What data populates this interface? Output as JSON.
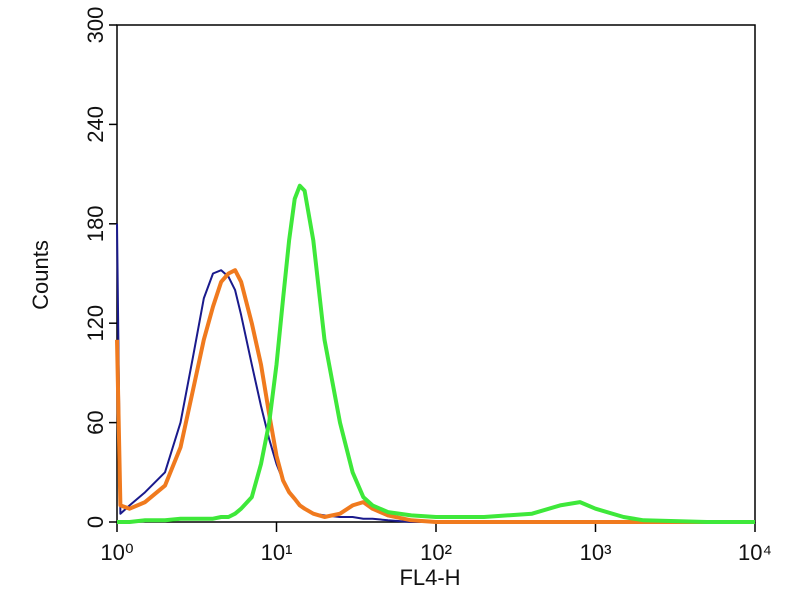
{
  "chart_data": {
    "type": "line",
    "xlabel": "FL4-H",
    "ylabel": "Counts",
    "xscale": "log",
    "xlim": [
      1,
      10000
    ],
    "xticks": [
      {
        "value": 1,
        "label": "10⁰"
      },
      {
        "value": 10,
        "label": "10¹"
      },
      {
        "value": 100,
        "label": "10²"
      },
      {
        "value": 1000,
        "label": "10³"
      },
      {
        "value": 10000,
        "label": "10⁴"
      }
    ],
    "ylim": [
      0,
      300
    ],
    "yticks": [
      0,
      60,
      120,
      180,
      240,
      300
    ],
    "x": [
      1,
      1.05,
      1.2,
      1.5,
      2,
      2.5,
      3,
      3.5,
      4,
      4.5,
      5,
      5.5,
      6,
      7,
      8,
      9,
      10,
      11,
      12,
      13,
      14,
      15,
      17,
      20,
      25,
      30,
      35,
      40,
      50,
      70,
      100,
      200,
      400,
      600,
      800,
      1000,
      1500,
      2000,
      5000,
      10000
    ],
    "series": [
      {
        "color": "#1a1a8c",
        "values": [
          180,
          5,
          10,
          18,
          30,
          60,
          100,
          135,
          150,
          152,
          148,
          140,
          125,
          95,
          70,
          50,
          35,
          25,
          18,
          14,
          10,
          8,
          5,
          4,
          3,
          3,
          2,
          2,
          1,
          0,
          0,
          0,
          0,
          0,
          0,
          0,
          0,
          0,
          0,
          0
        ]
      },
      {
        "color": "#f07a1e",
        "values": [
          110,
          10,
          8,
          12,
          22,
          45,
          80,
          110,
          130,
          145,
          150,
          152,
          145,
          120,
          95,
          65,
          40,
          25,
          18,
          14,
          10,
          8,
          5,
          3,
          5,
          10,
          12,
          8,
          4,
          1,
          0,
          0,
          0,
          0,
          0,
          0,
          0,
          0,
          0,
          0
        ]
      },
      {
        "color": "#3ee83a",
        "values": [
          0,
          0,
          0,
          1,
          1,
          2,
          2,
          2,
          2,
          3,
          3,
          5,
          8,
          15,
          35,
          60,
          95,
          135,
          170,
          195,
          203,
          200,
          170,
          110,
          60,
          30,
          15,
          10,
          6,
          4,
          3,
          3,
          5,
          10,
          12,
          8,
          3,
          1,
          0,
          0
        ]
      }
    ]
  }
}
